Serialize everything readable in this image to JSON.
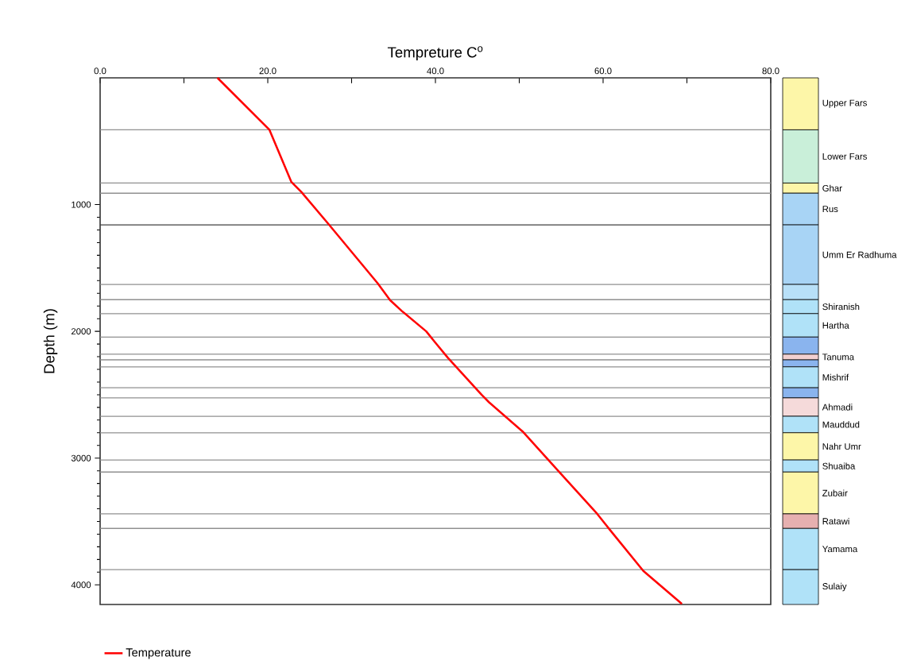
{
  "chart_data": [
    {
      "type": "line",
      "xlabel": "Tempreture C$^{o}$",
      "ylabel": "Depth  (m)",
      "xlim": [
        0,
        80
      ],
      "ylim": [
        4155,
        0
      ],
      "xticks": [
        {
          "value": 0,
          "label": "0.0"
        },
        {
          "value": 10,
          "label": null
        },
        {
          "value": 20,
          "label": "20.0"
        },
        {
          "value": 30,
          "label": null
        },
        {
          "value": 40,
          "label": "40.0"
        },
        {
          "value": 50,
          "label": null
        },
        {
          "value": 60,
          "label": "60.0"
        },
        {
          "value": 70,
          "label": null
        },
        {
          "value": 80,
          "label": "80.0"
        }
      ],
      "yticks": [
        1000,
        2000,
        3000,
        4000
      ],
      "series": [
        {
          "name": "Temperature",
          "color": "#ff0000",
          "x": [
            14.0,
            20.2,
            22.8,
            24.0,
            27.2,
            33.1,
            34.6,
            36.0,
            38.9,
            40.0,
            41.5,
            45.5,
            46.4,
            50.4,
            54.7,
            59.3,
            60.8,
            64.8,
            69.4
          ],
          "values": [
            0,
            410,
            820,
            900,
            1150,
            1620,
            1755,
            1840,
            2000,
            2090,
            2210,
            2500,
            2560,
            2790,
            3105,
            3440,
            3565,
            3890,
            4150
          ]
        }
      ],
      "ref_lines": [
        {
          "axis": "y",
          "value": 410,
          "color": "#909090"
        },
        {
          "axis": "y",
          "value": 830,
          "color": "#909090"
        },
        {
          "axis": "y",
          "value": 910,
          "color": "#909090"
        },
        {
          "axis": "y",
          "value": 1160,
          "color": "#404040"
        },
        {
          "axis": "y",
          "value": 1630,
          "color": "#909090"
        },
        {
          "axis": "y",
          "value": 1750,
          "color": "#909090"
        },
        {
          "axis": "y",
          "value": 1860,
          "color": "#909090"
        },
        {
          "axis": "y",
          "value": 2045,
          "color": "#909090"
        },
        {
          "axis": "y",
          "value": 2180,
          "color": "#909090"
        },
        {
          "axis": "y",
          "value": 2225,
          "color": "#909090"
        },
        {
          "axis": "y",
          "value": 2280,
          "color": "#909090"
        },
        {
          "axis": "y",
          "value": 2445,
          "color": "#909090"
        },
        {
          "axis": "y",
          "value": 2525,
          "color": "#909090"
        },
        {
          "axis": "y",
          "value": 2670,
          "color": "#909090"
        },
        {
          "axis": "y",
          "value": 2800,
          "color": "#909090"
        },
        {
          "axis": "y",
          "value": 3015,
          "color": "#909090"
        },
        {
          "axis": "y",
          "value": 3110,
          "color": "#909090"
        },
        {
          "axis": "y",
          "value": 3440,
          "color": "#909090"
        },
        {
          "axis": "y",
          "value": 3555,
          "color": "#909090"
        },
        {
          "axis": "y",
          "value": 3880,
          "color": "#909090"
        }
      ],
      "grid": false,
      "legend": "bottom left",
      "marker": "none",
      "line_style": "solid"
    },
    {
      "type": "bar",
      "stacked": true,
      "categories": [
        null
      ],
      "ylim": [
        4155,
        0
      ],
      "series": [
        {
          "name": "Upper Fars",
          "color": "#fdf6a8",
          "values": [
            410
          ]
        },
        {
          "name": "Lower Fars",
          "color": "#c9efd9",
          "values": [
            420
          ]
        },
        {
          "name": "Ghar",
          "color": "#fdf6a8",
          "values": [
            80
          ]
        },
        {
          "name": "Rus",
          "color": "#a8d4f5",
          "values": [
            250
          ]
        },
        {
          "name": "Umm Er Radhuma",
          "color": "#a8d4f5",
          "values": [
            470
          ]
        },
        {
          "name": null,
          "color": "#b8e0f8",
          "values": [
            120
          ]
        },
        {
          "name": "Shiranish",
          "color": "#b0e2f8",
          "values": [
            110
          ]
        },
        {
          "name": "Hartha",
          "color": "#b0e2f8",
          "values": [
            185
          ]
        },
        {
          "name": null,
          "color": "#8ab4ee",
          "values": [
            135
          ]
        },
        {
          "name": "Tanuma",
          "color": "#f2d0d0",
          "values": [
            45
          ]
        },
        {
          "name": null,
          "color": "#8ab4ee",
          "values": [
            55
          ]
        },
        {
          "name": "Mishrif",
          "color": "#b0e2f8",
          "values": [
            165
          ]
        },
        {
          "name": null,
          "color": "#8ab4ee",
          "values": [
            80
          ]
        },
        {
          "name": "Ahmadi",
          "color": "#f5dada",
          "values": [
            145
          ]
        },
        {
          "name": "Mauddud",
          "color": "#b0e2f8",
          "values": [
            130
          ]
        },
        {
          "name": "Nahr Umr",
          "color": "#fdf6a8",
          "values": [
            215
          ]
        },
        {
          "name": "Shuaiba",
          "color": "#b0e2f8",
          "values": [
            95
          ]
        },
        {
          "name": "Zubair",
          "color": "#fdf6a8",
          "values": [
            330
          ]
        },
        {
          "name": "Ratawi",
          "color": "#e6b0b0",
          "values": [
            115
          ]
        },
        {
          "name": "Yamama",
          "color": "#b0e2f8",
          "values": [
            325
          ]
        },
        {
          "name": "Sulaiy",
          "color": "#b0e2f8",
          "values": [
            275
          ]
        }
      ]
    }
  ]
}
